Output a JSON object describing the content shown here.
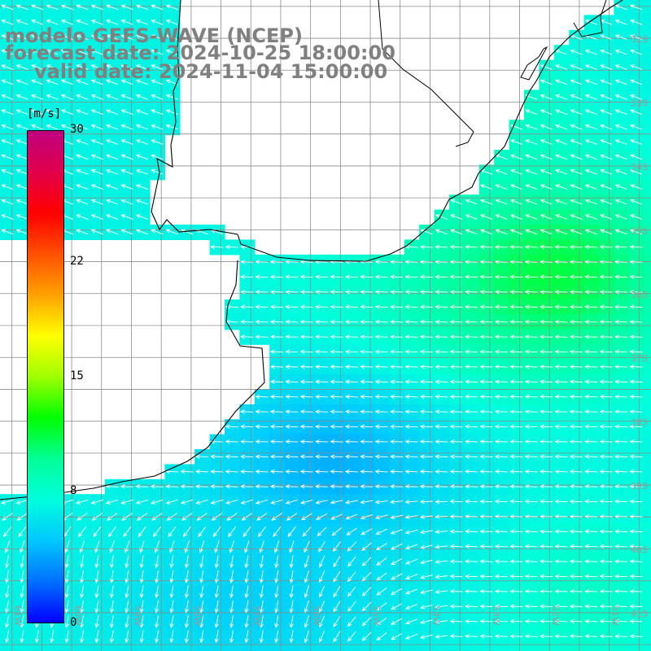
{
  "title": {
    "model": "modelo GEFS-WAVE (NCEP)",
    "forecast": "forecast date: 2024-10-25 18:00:00",
    "valid": "valid date: 2024-11-04 15:00:00"
  },
  "colorbar": {
    "unit": "[m/s]",
    "min": 0,
    "max": 30,
    "ticks": [
      "30",
      "22",
      "15",
      "8",
      "0"
    ],
    "tick_values": [
      30,
      22,
      15,
      8,
      0
    ],
    "colors": [
      "#0000ff",
      "#0070ff",
      "#00c8ff",
      "#00ffdc",
      "#00ff96",
      "#00ff00",
      "#a0ff00",
      "#ffff00",
      "#ffa000",
      "#ff5000",
      "#ff0000",
      "#e0004a",
      "#c00080"
    ]
  },
  "map": {
    "lat_labels": [
      "32S",
      "33S",
      "34S",
      "35S",
      "36S",
      "37S",
      "38S",
      "39S",
      "40S",
      "41S"
    ],
    "lat_values": [
      -32,
      -33,
      -34,
      -35,
      -36,
      -37,
      -38,
      -39,
      -40,
      -41
    ],
    "lon_labels": [
      "61W",
      "60W",
      "59W",
      "58W",
      "57W",
      "56W",
      "55W",
      "54W",
      "53W",
      "52W",
      "51W"
    ],
    "lon_values": [
      -61,
      -60,
      -59,
      -58,
      -57,
      -56,
      -55,
      -54,
      -53,
      -52,
      -51
    ],
    "lon_range": [
      -61.2,
      -50.3
    ],
    "lat_range": [
      -41.6,
      -31.4
    ],
    "wind_direction": "from east / north-east, turning south in the south-west"
  }
}
